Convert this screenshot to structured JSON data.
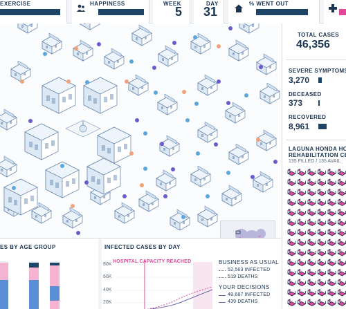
{
  "topbar": {
    "exercise": {
      "label": "EXERCISE",
      "value_fraction": 0.9
    },
    "happiness": {
      "label": "HAPPINESS",
      "icon": "people-icon",
      "value_fraction": 0.92
    },
    "week": {
      "label": "WEEK",
      "value": "5"
    },
    "day": {
      "label": "DAY",
      "value": "31"
    },
    "went_out": {
      "label": "% WENT OUT",
      "icon": "house-icon",
      "value_fraction": 0.83
    },
    "medical": {
      "icon": "medical-cross-icon"
    }
  },
  "sidebar": {
    "total_label": "TOTAL CASES",
    "total_value": "46,356",
    "severe_label": "SEVERE SYMPTOMS",
    "severe_value": "3,270",
    "severe_fraction": 0.13,
    "deceased_label": "DECEASED",
    "deceased_value": "373",
    "deceased_fraction": 0.06,
    "recovered_label": "RECOVERED",
    "recovered_value": "8,961",
    "recovered_fraction": 0.3,
    "hospital_name_1": "LAGUNA HONDA HOSP",
    "hospital_name_2": "REHABILITATION CENT",
    "hospital_capacity": "135 FILLED / 135 AVAIL",
    "colors": {
      "bed": "#e0489a",
      "bar": "#1f4566"
    }
  },
  "age_panel": {
    "title": "ES BY AGE GROUP"
  },
  "cases_panel": {
    "title": "INFECTED CASES BY DAY",
    "capacity_label": "HOSPITAL CAPACITY REACHED",
    "yticks": [
      "80K",
      "60K",
      "40K",
      "20K"
    ],
    "bau_heading": "BUSINESS AS USUAL",
    "bau_infected": "52,563 INFECTED",
    "bau_deaths": "519 DEATHS",
    "yd_heading": "YOUR DECISIONS",
    "yd_infected": "48,687 INFECTED",
    "yd_deaths": "439 DEATHS"
  }
}
